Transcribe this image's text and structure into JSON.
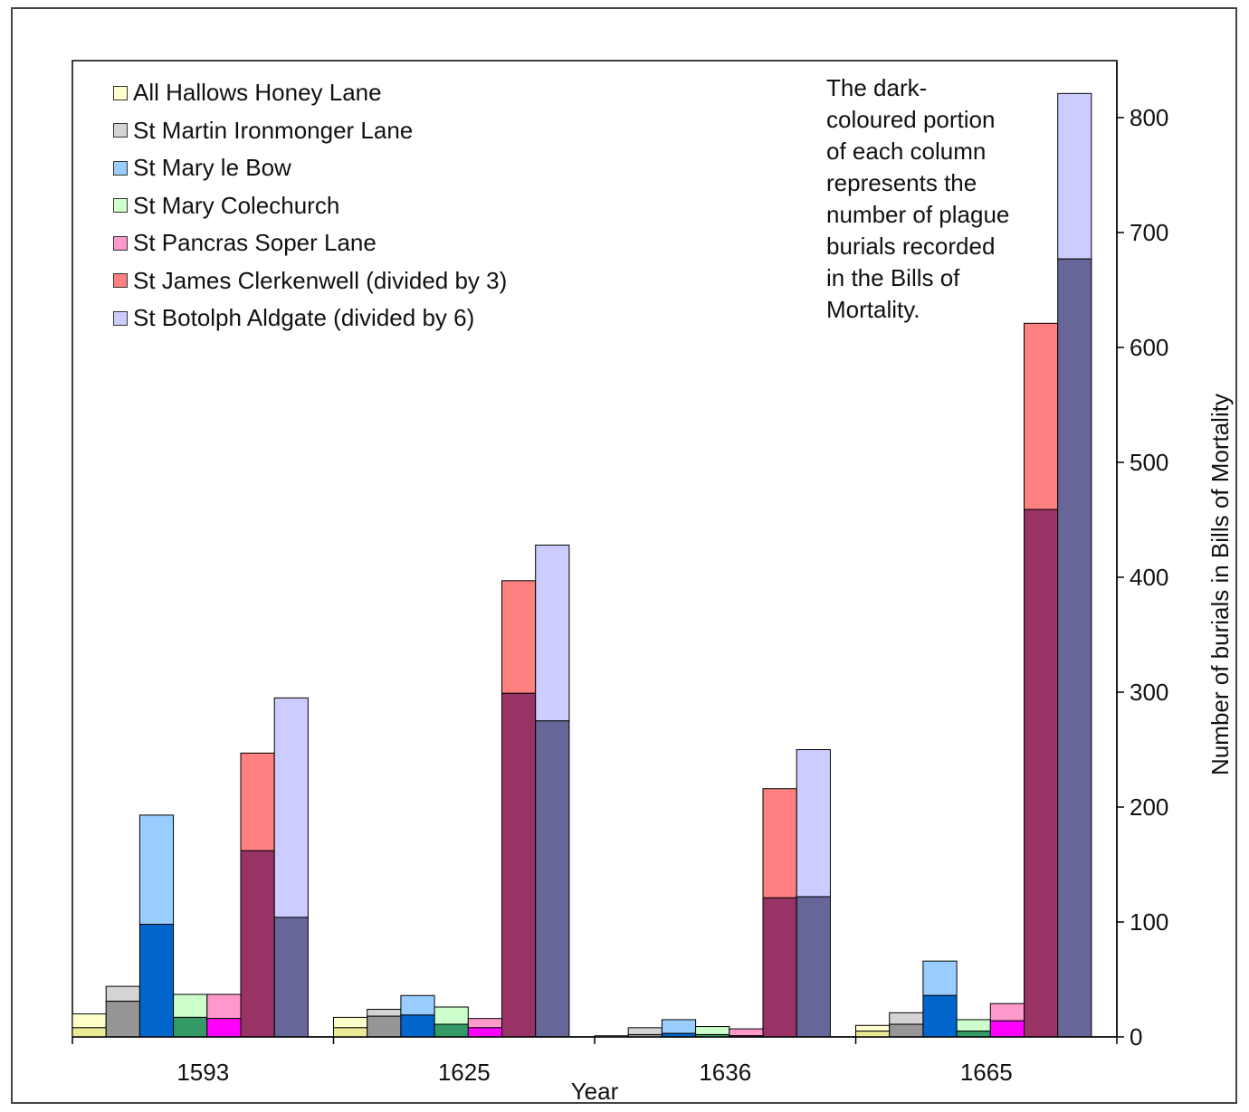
{
  "chart_data": {
    "type": "bar",
    "categories": [
      "1593",
      "1625",
      "1636",
      "1665"
    ],
    "xlabel": "Year",
    "ylabel": "Number of burials in Bills of Mortality",
    "ylim": [
      0,
      800
    ],
    "yticks": [
      0,
      100,
      200,
      300,
      400,
      500,
      600,
      700,
      800
    ],
    "y_axis_side": "right",
    "legend_position": "top-left",
    "annotation": "The dark-\ncoloured portion\nof each column\nrepresents the\nnumber of plague\nburials recorded\nin the Bills of\nMortality.",
    "series": [
      {
        "name": "All Hallows Honey Lane",
        "light_color": "#FFFFCC",
        "dark_color": "#EAEA96",
        "total": [
          20,
          17,
          1,
          10
        ],
        "plague": [
          8,
          8,
          0,
          5
        ]
      },
      {
        "name": "St Martin Ironmonger Lane",
        "light_color": "#D4D4D4",
        "dark_color": "#969696",
        "total": [
          44,
          24,
          8,
          21
        ],
        "plague": [
          31,
          18,
          2,
          11
        ]
      },
      {
        "name": "St Mary le Bow",
        "light_color": "#99CCFF",
        "dark_color": "#0066CC",
        "total": [
          193,
          36,
          15,
          66
        ],
        "plague": [
          98,
          19,
          3,
          36
        ]
      },
      {
        "name": "St Mary Colechurch",
        "light_color": "#CCFFCC",
        "dark_color": "#339966",
        "total": [
          37,
          26,
          9,
          15
        ],
        "plague": [
          17,
          11,
          2,
          5
        ]
      },
      {
        "name": "St Pancras Soper Lane",
        "light_color": "#FF99CC",
        "dark_color": "#FF00FF",
        "total": [
          37,
          16,
          7,
          29
        ],
        "plague": [
          16,
          8,
          1,
          14
        ]
      },
      {
        "name": "St James Clerkenwell (divided by 3)",
        "light_color": "#FF8080",
        "dark_color": "#993366",
        "total": [
          247,
          397,
          216,
          621
        ],
        "plague": [
          162,
          299,
          121,
          459
        ]
      },
      {
        "name": "St Botolph Aldgate (divided by 6)",
        "light_color": "#CCCCFF",
        "dark_color": "#666699",
        "total": [
          295,
          428,
          250,
          821
        ],
        "plague": [
          104,
          275,
          122,
          677
        ]
      }
    ]
  }
}
